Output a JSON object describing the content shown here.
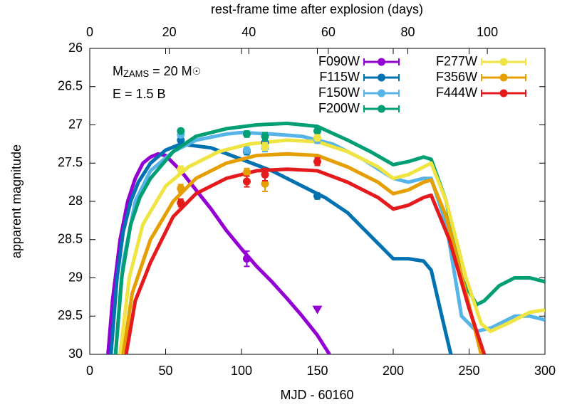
{
  "chart_data": {
    "type": "line",
    "x2label": "rest-frame time after explosion (days)",
    "xlabel": "MJD - 60160",
    "ylabel": "apparent magnitude",
    "xlim": [
      0,
      300
    ],
    "xticks": [
      0,
      50,
      100,
      150,
      200,
      250,
      300
    ],
    "x2lim": [
      0,
      114.5
    ],
    "x2ticks": [
      0,
      20,
      40,
      60,
      80,
      100
    ],
    "ylim": [
      30,
      26
    ],
    "yticks": [
      26,
      26.5,
      27,
      27.5,
      28,
      28.5,
      29,
      29.5,
      30
    ],
    "annotations": [
      {
        "parts": [
          "M",
          "ZAMS",
          " = 20 M",
          "☉"
        ]
      },
      {
        "parts": [
          "E = 1.5 B"
        ]
      }
    ],
    "series": [
      {
        "name": "F090W",
        "color": "#9400d3",
        "x": [
          12,
          15,
          20,
          25,
          30,
          35,
          40,
          45,
          50,
          60,
          70,
          80,
          90,
          100,
          110,
          120,
          130,
          140,
          150,
          158
        ],
        "values": [
          30,
          29.3,
          28.5,
          28.0,
          27.7,
          27.5,
          27.42,
          27.38,
          27.4,
          27.6,
          27.85,
          28.1,
          28.38,
          28.62,
          28.85,
          29.05,
          29.27,
          29.5,
          29.75,
          30
        ],
        "points": {
          "x": [
            103.5
          ],
          "values": [
            28.75
          ],
          "errors": [
            0.1
          ]
        },
        "upper_limits": {
          "x": [
            150
          ],
          "values": [
            29.42
          ]
        }
      },
      {
        "name": "F115W",
        "color": "#0072b2",
        "x": [
          14,
          18,
          22,
          27,
          32,
          40,
          50,
          60,
          80,
          100,
          120,
          140,
          155,
          170,
          185,
          200,
          210,
          220,
          225,
          232,
          238
        ],
        "values": [
          30,
          29.0,
          28.4,
          28.0,
          27.75,
          27.5,
          27.33,
          27.25,
          27.3,
          27.45,
          27.6,
          27.8,
          27.95,
          28.15,
          28.45,
          28.75,
          28.75,
          28.78,
          28.9,
          29.5,
          30
        ],
        "points": {
          "x": [
            60,
            103.5,
            115.5,
            150
          ],
          "values": [
            27.2,
            27.35,
            27.23,
            27.93
          ],
          "errors": [
            0.03,
            0.04,
            0.05,
            0.04
          ]
        }
      },
      {
        "name": "F150W",
        "color": "#56b4e9",
        "x": [
          17,
          22,
          30,
          40,
          55,
          70,
          90,
          100,
          120,
          140,
          160,
          180,
          200,
          210,
          220,
          225,
          235,
          245,
          255,
          265,
          280,
          290,
          300
        ],
        "values": [
          30,
          28.8,
          28.0,
          27.6,
          27.35,
          27.2,
          27.12,
          27.1,
          27.12,
          27.15,
          27.25,
          27.45,
          27.7,
          27.75,
          27.7,
          27.7,
          28.3,
          29.5,
          29.7,
          29.65,
          29.5,
          29.5,
          29.55
        ],
        "points": {
          "x": [
            60,
            103.5,
            115.5,
            150
          ],
          "values": [
            27.13,
            27.33,
            27.3,
            27.2
          ],
          "errors": [
            0.03,
            0.04,
            0.05,
            0.04
          ]
        }
      },
      {
        "name": "F200W",
        "color": "#009e73",
        "x": [
          17,
          21,
          27,
          33,
          40,
          55,
          70,
          90,
          110,
          130,
          150,
          170,
          185,
          200,
          210,
          220,
          225,
          235,
          245,
          255,
          260,
          270,
          280,
          290,
          300
        ],
        "values": [
          30,
          29.0,
          28.3,
          27.95,
          27.7,
          27.35,
          27.15,
          27.05,
          27.0,
          26.98,
          27.02,
          27.2,
          27.35,
          27.52,
          27.48,
          27.42,
          27.45,
          28.0,
          29.0,
          29.35,
          29.3,
          29.1,
          29.0,
          29.0,
          29.05
        ],
        "points": {
          "x": [
            60,
            103.5,
            115.5,
            150
          ],
          "values": [
            27.08,
            27.12,
            27.15,
            27.08
          ],
          "errors": [
            0.03,
            0.04,
            0.05,
            0.04
          ]
        }
      },
      {
        "name": "F277W",
        "color": "#f0e442",
        "x": [
          20,
          26,
          35,
          50,
          65,
          85,
          105,
          130,
          150,
          170,
          190,
          200,
          210,
          220,
          225,
          235,
          248,
          258,
          264,
          275,
          290,
          300
        ],
        "values": [
          30,
          29.0,
          28.3,
          27.8,
          27.55,
          27.35,
          27.25,
          27.2,
          27.22,
          27.35,
          27.55,
          27.7,
          27.65,
          27.55,
          27.5,
          28.0,
          29.0,
          29.6,
          29.7,
          29.6,
          29.45,
          29.42
        ],
        "points": {
          "x": [
            60,
            115.5,
            150
          ],
          "values": [
            27.58,
            27.28,
            27.17
          ],
          "errors": [
            0.04,
            0.05,
            0.04
          ]
        }
      },
      {
        "name": "F356W",
        "color": "#e69f00",
        "x": [
          22,
          28,
          40,
          55,
          70,
          90,
          110,
          130,
          150,
          170,
          190,
          200,
          210,
          220,
          225,
          235,
          248,
          258
        ],
        "values": [
          30,
          29.2,
          28.5,
          28.0,
          27.7,
          27.5,
          27.4,
          27.38,
          27.4,
          27.55,
          27.75,
          27.9,
          27.85,
          27.75,
          27.72,
          28.2,
          29.2,
          30
        ],
        "points": {
          "x": [
            60,
            103.5,
            115.5
          ],
          "values": [
            27.83,
            27.62,
            27.77
          ],
          "errors": [
            0.05,
            0.05,
            0.1
          ]
        }
      },
      {
        "name": "F444W",
        "color": "#e41a1c",
        "x": [
          24,
          30,
          40,
          55,
          70,
          90,
          110,
          130,
          150,
          170,
          190,
          200,
          210,
          220,
          225,
          237,
          250,
          260
        ],
        "values": [
          30,
          29.3,
          28.8,
          28.2,
          27.9,
          27.7,
          27.6,
          27.58,
          27.6,
          27.75,
          27.95,
          28.1,
          28.05,
          27.95,
          27.92,
          28.5,
          29.4,
          30
        ],
        "points": {
          "x": [
            60,
            103.5,
            115.5,
            150
          ],
          "values": [
            28.02,
            27.74,
            27.65,
            27.48
          ],
          "errors": [
            0.05,
            0.07,
            0.08,
            0.05
          ]
        }
      }
    ]
  }
}
